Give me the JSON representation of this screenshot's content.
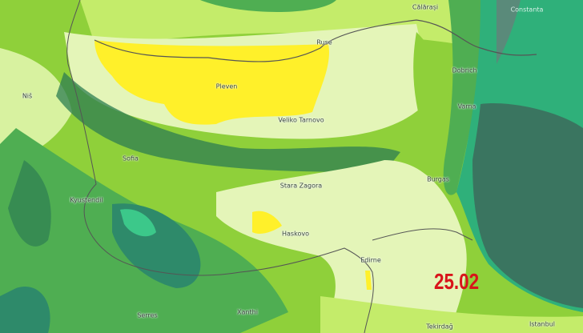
{
  "date_label": "25.02",
  "colors": {
    "yellow": "#fff02a",
    "pale": "#e4f5b8",
    "light_green": "#c4ec6a",
    "green": "#8fd03a",
    "mid_green": "#4fae52",
    "dark_green": "#2e7d52",
    "sea_dark": "#3a7560",
    "sea_teal": "#2fb07a",
    "date": "#d8141a"
  },
  "cities": [
    {
      "name": "Călărași"
    },
    {
      "name": "Constanta"
    },
    {
      "name": "Ruse"
    },
    {
      "name": "Dobrich"
    },
    {
      "name": "Niš"
    },
    {
      "name": "Pleven"
    },
    {
      "name": "Varna"
    },
    {
      "name": "Veliko Tarnovo"
    },
    {
      "name": "Sofia"
    },
    {
      "name": "Burgas"
    },
    {
      "name": "Stara Zagora"
    },
    {
      "name": "Kyustendil"
    },
    {
      "name": "Haskovo"
    },
    {
      "name": "Edirne"
    },
    {
      "name": "Serres"
    },
    {
      "name": "Xanthi"
    },
    {
      "name": "Tekirdağ"
    },
    {
      "name": "Istanbul"
    }
  ]
}
